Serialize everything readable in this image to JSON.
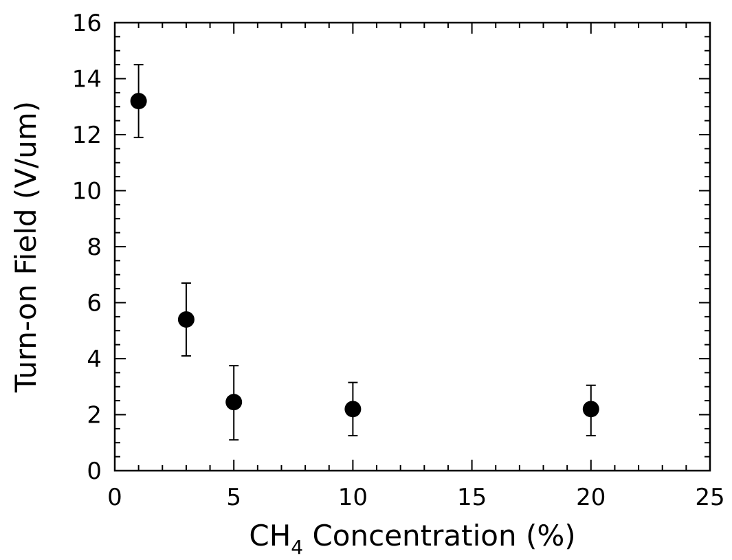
{
  "chart_data": {
    "type": "scatter",
    "title": "",
    "xlabel_main": "CH",
    "xlabel_sub": "4",
    "xlabel_rest": " Concentration  (%)",
    "ylabel": "Turn-on  Field  (V/um)",
    "xlim": [
      0,
      25
    ],
    "ylim": [
      0,
      16
    ],
    "x_ticks": [
      0,
      5,
      10,
      15,
      20,
      25
    ],
    "y_ticks": [
      0,
      2,
      4,
      6,
      8,
      10,
      12,
      14,
      16
    ],
    "x_minor_step": 1,
    "y_minor_step": 0.5,
    "grid": false,
    "marker_color": "#000000",
    "points": [
      {
        "x": 1,
        "y": 13.2,
        "err_low": 11.9,
        "err_high": 14.5
      },
      {
        "x": 3,
        "y": 5.4,
        "err_low": 4.1,
        "err_high": 6.7
      },
      {
        "x": 5,
        "y": 2.45,
        "err_low": 1.1,
        "err_high": 3.75
      },
      {
        "x": 10,
        "y": 2.2,
        "err_low": 1.25,
        "err_high": 3.15
      },
      {
        "x": 20,
        "y": 2.2,
        "err_low": 1.25,
        "err_high": 3.05
      }
    ]
  }
}
